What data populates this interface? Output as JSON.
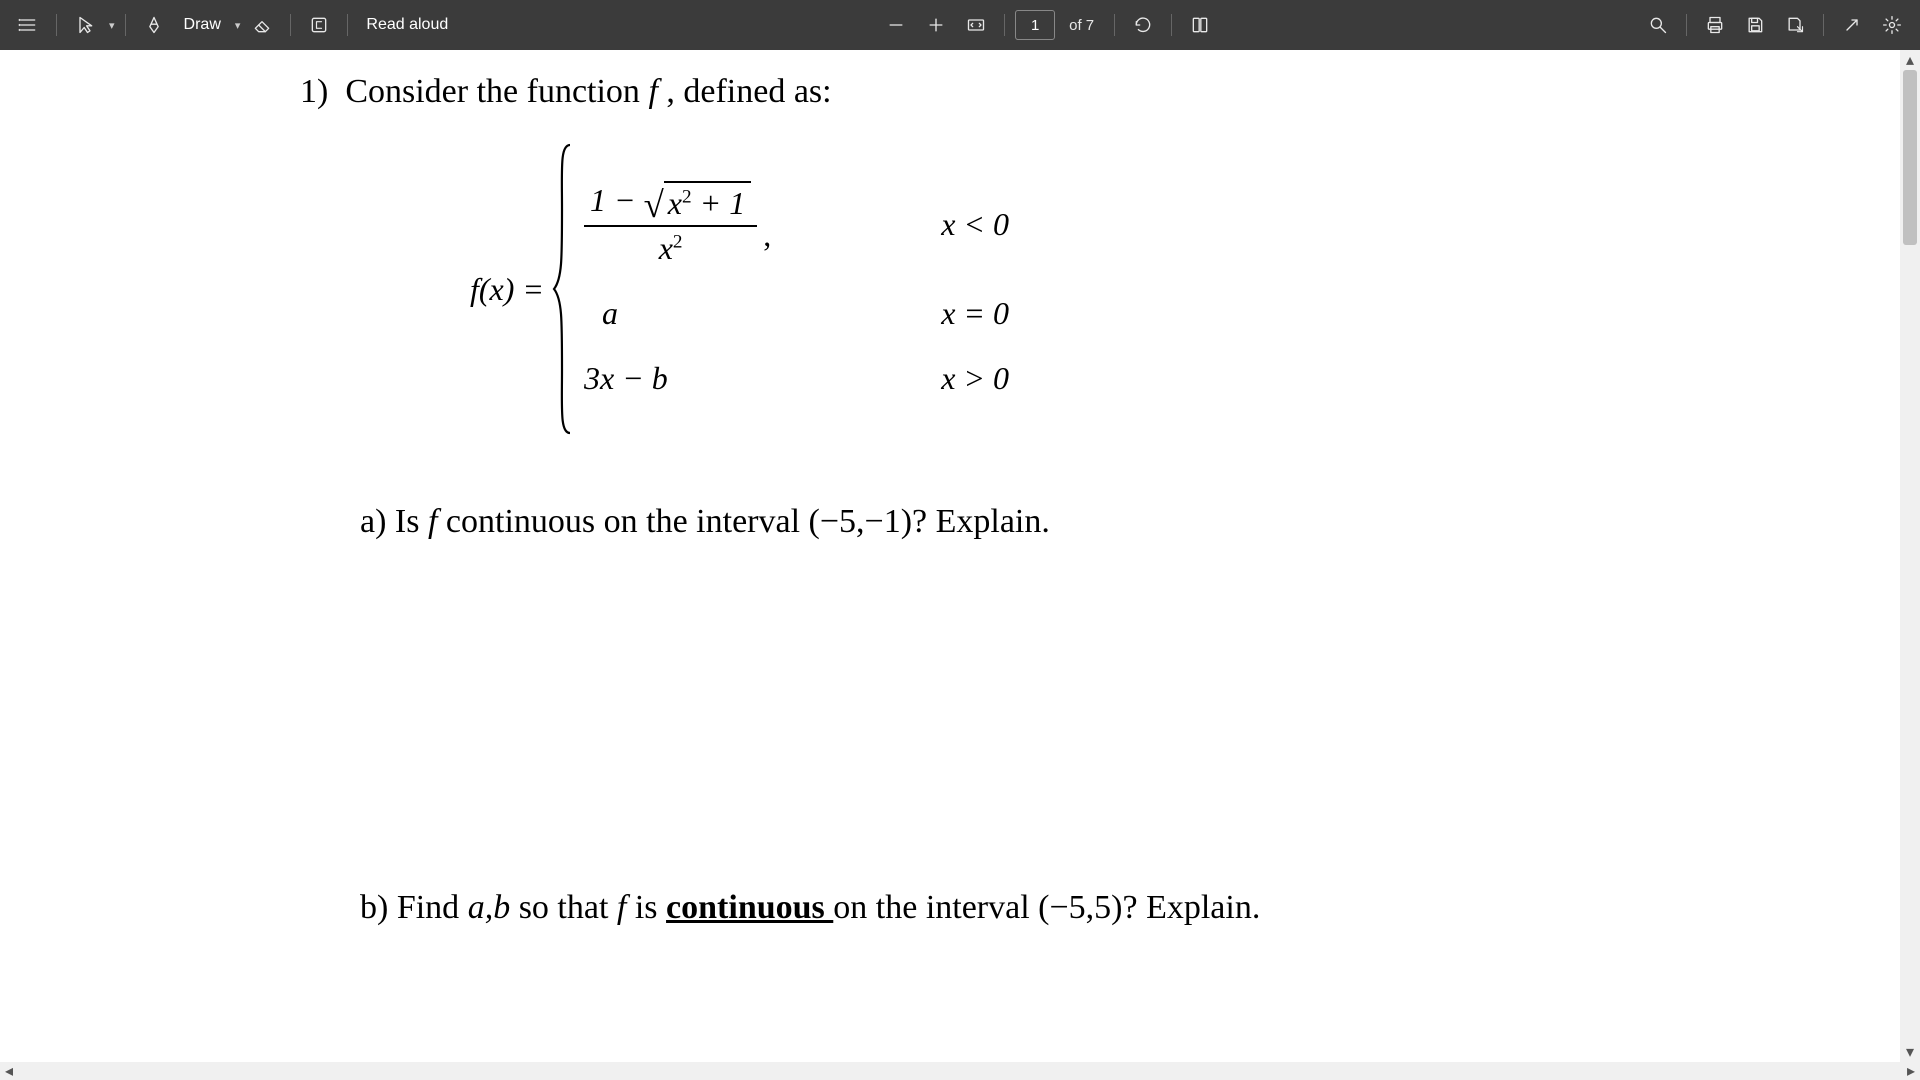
{
  "toolbar": {
    "draw_label": "Draw",
    "read_aloud_label": "Read aloud",
    "page_current": "1",
    "page_of": "of 7"
  },
  "document": {
    "q1_prefix": "1)  Consider the function ",
    "q1_fvar": "f",
    "q1_suffix": " , defined as:",
    "lhs_f": "f",
    "lhs_x": "(x) = ",
    "case1_num_pre": "1 − ",
    "case1_rad_x": "x",
    "case1_rad_plus": " + 1",
    "case1_den_x": "x",
    "case1_comma": ",",
    "case1_cond": "x < 0",
    "case2_expr": "a",
    "case2_cond": "x = 0",
    "case3_expr": "3x − b",
    "case3_cond": "x > 0",
    "part_a_pre": "a) Is ",
    "part_a_f": "f",
    "part_a_post": " continuous on the interval (−5,−1)? Explain.",
    "part_b_pre": "b) Find ",
    "part_b_ab": "a,b",
    "part_b_mid": " so that ",
    "part_b_f": "f",
    "part_b_is": " is ",
    "part_b_cont": "continuous ",
    "part_b_post": " on the interval (−5,5)? Explain."
  },
  "scroll": {
    "thumb_top_pct": 0,
    "thumb_height_pct": 18
  },
  "colors": {
    "toolbar_bg": "#3b3b3b",
    "page_bg": "#ffffff"
  }
}
